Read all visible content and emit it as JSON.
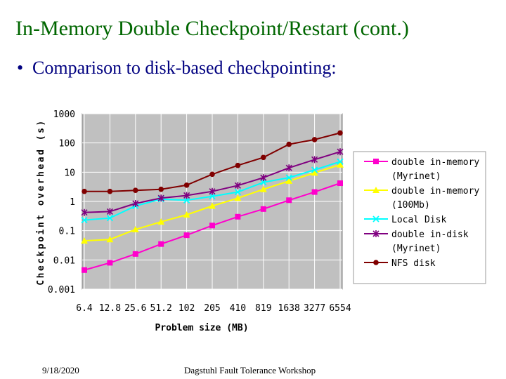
{
  "slide": {
    "title": "In-Memory Double Checkpoint/Restart (cont.)",
    "bullet_marker": "•",
    "bullet": "Comparison to disk-based checkpointing:",
    "footer_date": "9/18/2020",
    "footer_event": "Dagstuhl Fault Tolerance Workshop"
  },
  "colors": {
    "title": "#006600",
    "bullet": "#000080",
    "plot_background": "#c0c0c0"
  },
  "chart_data": {
    "type": "line",
    "title": "",
    "xlabel": "Problem size (MB)",
    "ylabel": "Checkpoint overhead (s)",
    "yscale": "log",
    "ylim": [
      0.001,
      1000
    ],
    "yticks": [
      "1000",
      "100",
      "10",
      "1",
      "0.1",
      "0.01",
      "0.001"
    ],
    "categories": [
      "6.4",
      "12.8",
      "25.6",
      "51.2",
      "102",
      "205",
      "410",
      "819",
      "1638",
      "3277",
      "6554"
    ],
    "grid": true,
    "legend_position": "right",
    "series": [
      {
        "name": "double in-memory (Myrinet)",
        "legend_lines": [
          "double in-memory",
          "(Myrinet)"
        ],
        "color": "#ff00cc",
        "marker": "square",
        "values": [
          0.0045,
          0.008,
          0.016,
          0.035,
          0.07,
          0.15,
          0.3,
          0.55,
          1.1,
          2.1,
          4.2
        ]
      },
      {
        "name": "double in-memory (100Mb)",
        "legend_lines": [
          "double in-memory",
          "(100Mb)"
        ],
        "color": "#ffff00",
        "marker": "triangle",
        "values": [
          0.045,
          0.05,
          0.11,
          0.2,
          0.35,
          0.7,
          1.3,
          2.6,
          5,
          9.5,
          18
        ]
      },
      {
        "name": "Local Disk",
        "legend_lines": [
          "Local Disk"
        ],
        "color": "#00ffff",
        "marker": "x",
        "values": [
          0.23,
          0.27,
          0.7,
          1.2,
          1.1,
          1.5,
          2.1,
          4.5,
          6.5,
          12,
          23
        ]
      },
      {
        "name": "double in-disk (Myrinet)",
        "legend_lines": [
          "double in-disk",
          "(Myrinet)"
        ],
        "color": "#800080",
        "marker": "star",
        "values": [
          0.42,
          0.45,
          0.85,
          1.3,
          1.6,
          2.2,
          3.5,
          6.5,
          14,
          27,
          50
        ]
      },
      {
        "name": "NFS disk",
        "legend_lines": [
          "NFS disk"
        ],
        "color": "#800000",
        "marker": "circle",
        "values": [
          2.2,
          2.2,
          2.4,
          2.6,
          3.6,
          8.5,
          17,
          32,
          90,
          130,
          220
        ]
      }
    ]
  }
}
